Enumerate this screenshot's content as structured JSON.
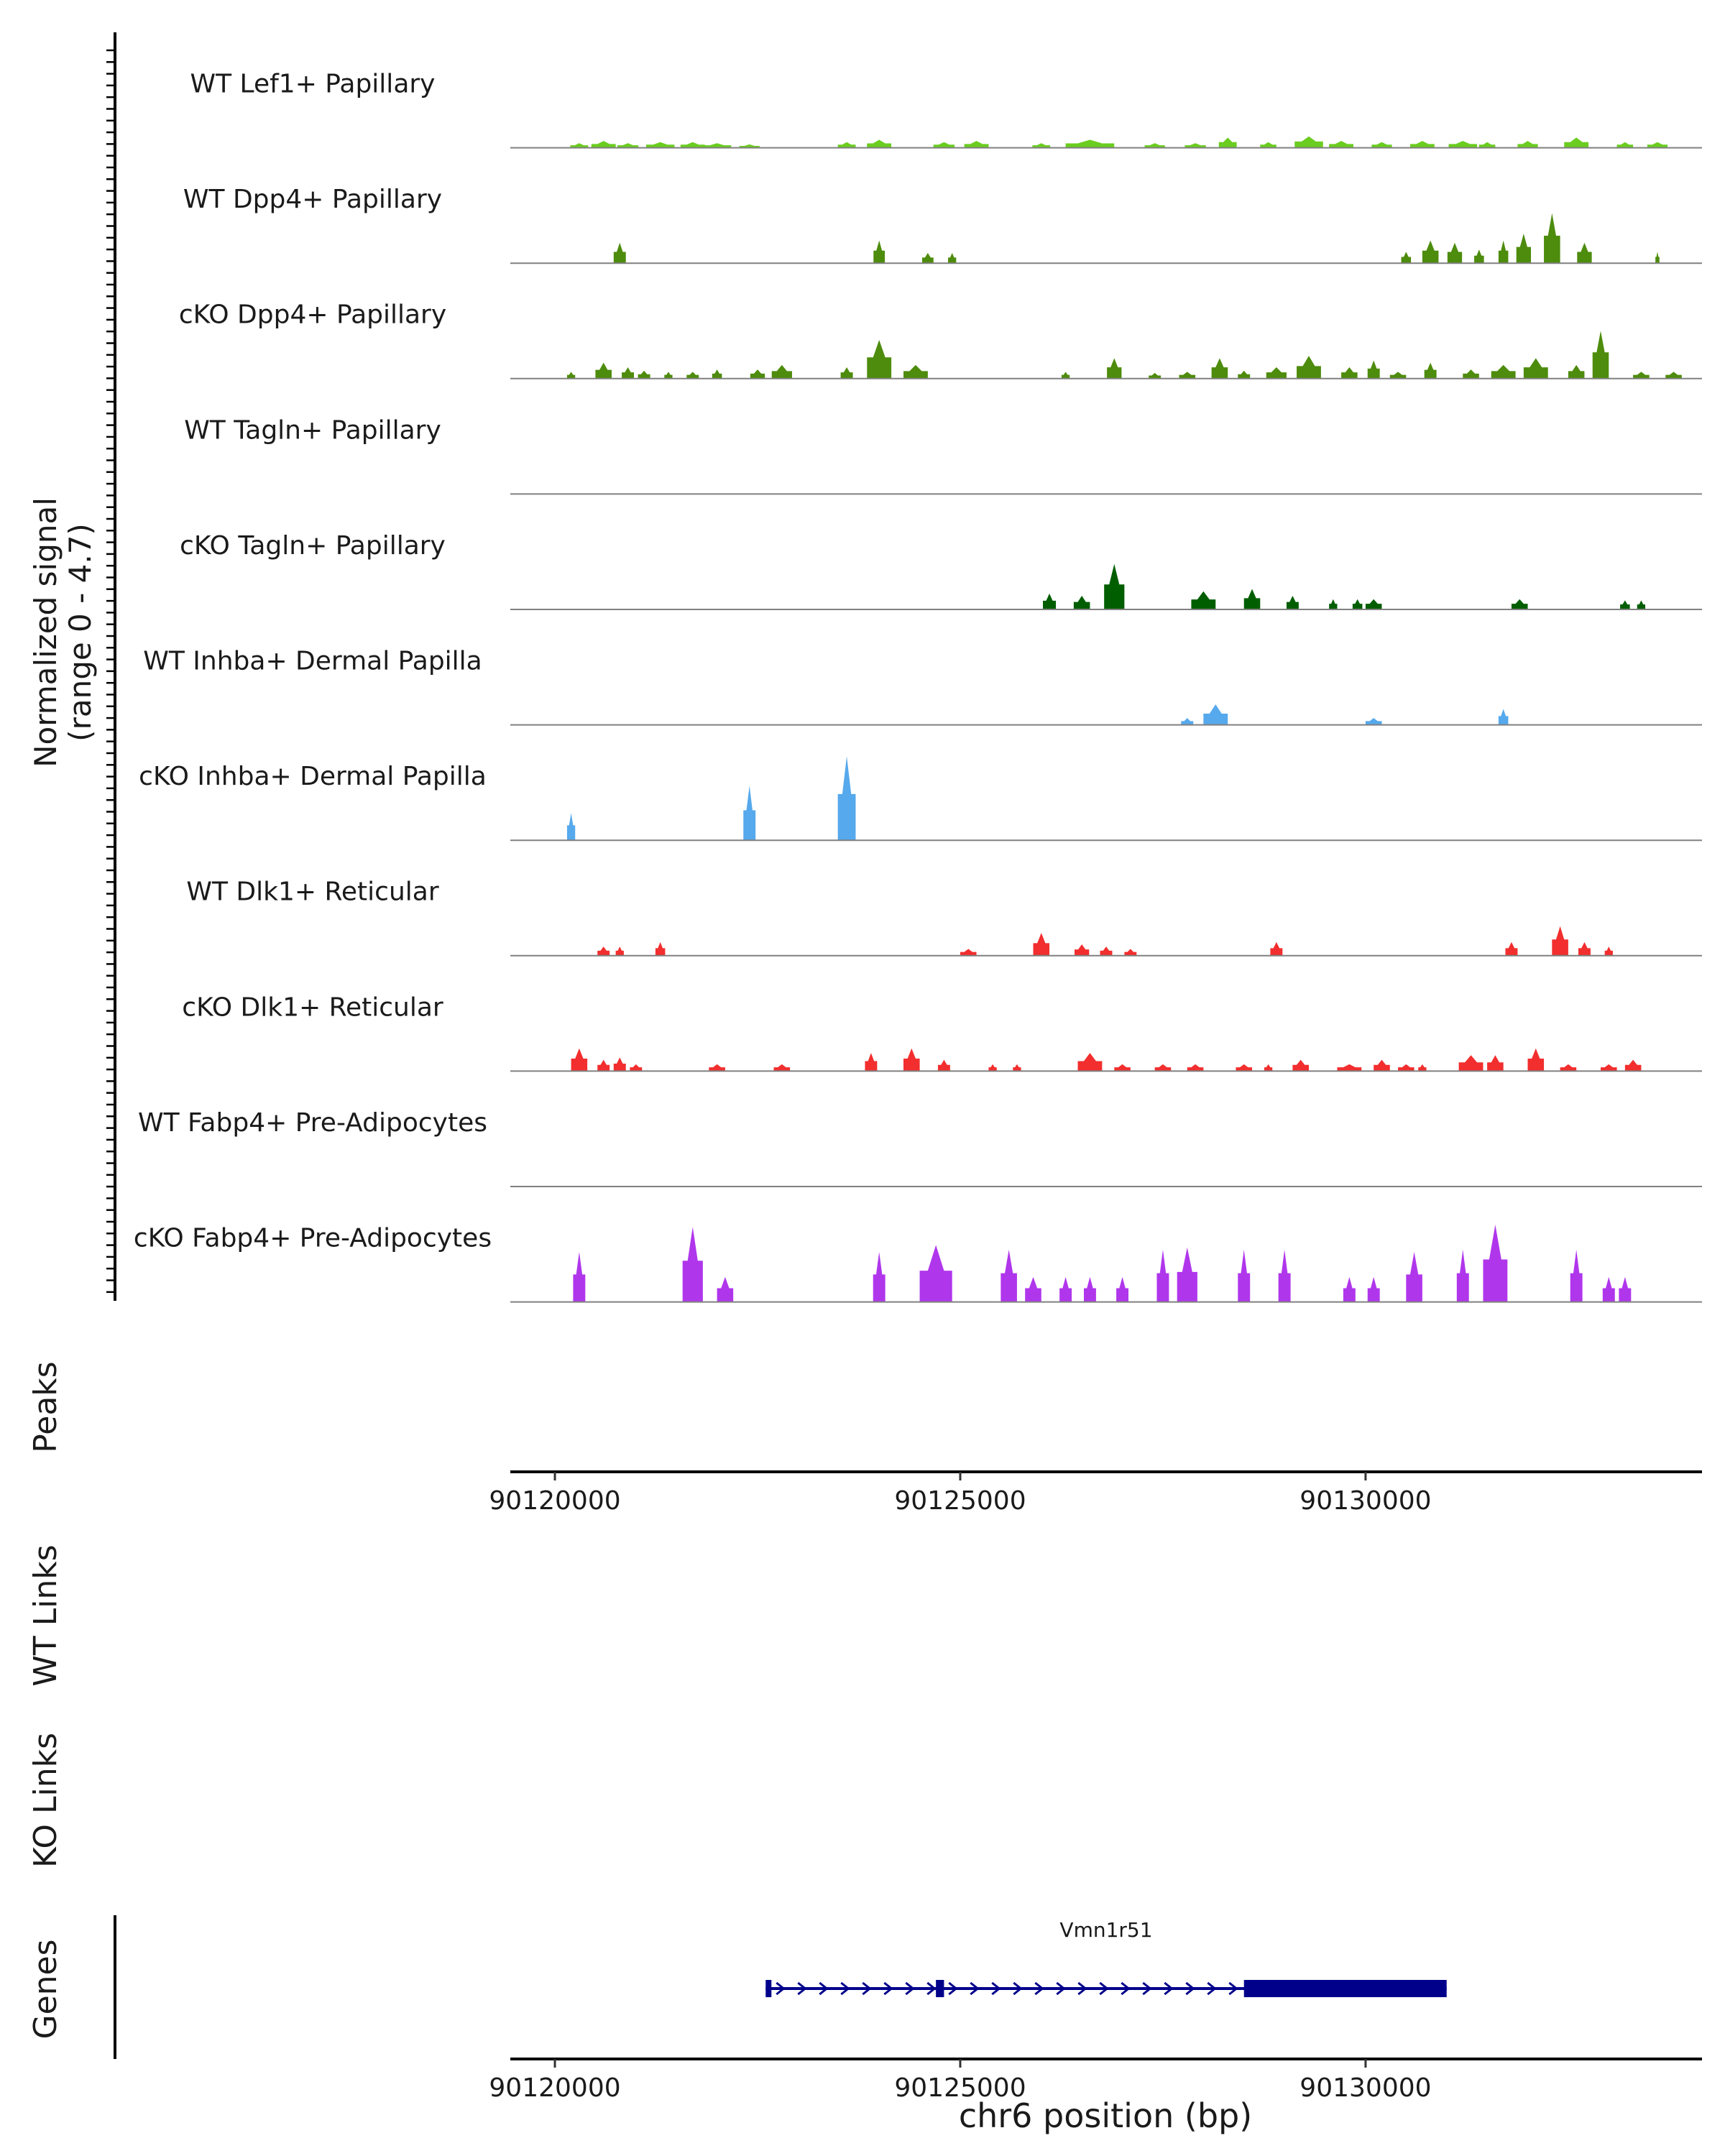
{
  "chart_data": {
    "type": "area",
    "description_axis": "chr6 position (bp)",
    "y_panel_label": "Normalized signal\n(range 0 - 4.7)",
    "y_range": [
      0,
      4.7
    ],
    "x_range": [
      90119450,
      90134150
    ],
    "x_ticks": [
      90120000,
      90125000,
      90130000
    ],
    "x_tick_labels": [
      "90120000",
      "90125000",
      "90130000"
    ],
    "xlabel": "chr6 position (bp)",
    "tracks": [
      {
        "name": "WT Lef1+ Papillary",
        "color": "#6acd1f",
        "peaks": [
          [
            90120300,
            220,
            0.2
          ],
          [
            90120600,
            300,
            0.3
          ],
          [
            90120900,
            260,
            0.2
          ],
          [
            90121300,
            350,
            0.25
          ],
          [
            90121700,
            300,
            0.25
          ],
          [
            90122000,
            350,
            0.2
          ],
          [
            90122400,
            250,
            0.15
          ],
          [
            90123600,
            220,
            0.25
          ],
          [
            90124000,
            300,
            0.35
          ],
          [
            90124800,
            260,
            0.25
          ],
          [
            90125200,
            300,
            0.3
          ],
          [
            90126000,
            220,
            0.2
          ],
          [
            90126600,
            600,
            0.35
          ],
          [
            90127400,
            250,
            0.2
          ],
          [
            90127900,
            260,
            0.2
          ],
          [
            90128300,
            220,
            0.45
          ],
          [
            90128800,
            200,
            0.25
          ],
          [
            90129300,
            350,
            0.5
          ],
          [
            90129700,
            300,
            0.3
          ],
          [
            90130200,
            250,
            0.25
          ],
          [
            90130700,
            300,
            0.3
          ],
          [
            90131200,
            350,
            0.3
          ],
          [
            90131500,
            200,
            0.25
          ],
          [
            90132000,
            250,
            0.3
          ],
          [
            90132600,
            300,
            0.45
          ],
          [
            90133200,
            200,
            0.25
          ],
          [
            90133600,
            250,
            0.25
          ]
        ]
      },
      {
        "name": "WT Dpp4+ Papillary",
        "color": "#4d8c0c",
        "peaks": [
          [
            90120800,
            150,
            0.9
          ],
          [
            90124000,
            140,
            1.0
          ],
          [
            90124600,
            140,
            0.45
          ],
          [
            90124900,
            100,
            0.45
          ],
          [
            90130500,
            120,
            0.5
          ],
          [
            90130800,
            200,
            1.0
          ],
          [
            90131100,
            180,
            0.9
          ],
          [
            90131400,
            120,
            0.6
          ],
          [
            90131700,
            120,
            1.0
          ],
          [
            90131950,
            180,
            1.3
          ],
          [
            90132300,
            200,
            2.2
          ],
          [
            90132700,
            180,
            0.9
          ],
          [
            90133600,
            50,
            0.5
          ]
        ]
      },
      {
        "name": "cKO Dpp4+ Papillary",
        "color": "#4d8c0c",
        "peaks": [
          [
            90120200,
            100,
            0.3
          ],
          [
            90120600,
            200,
            0.7
          ],
          [
            90120900,
            150,
            0.5
          ],
          [
            90121100,
            150,
            0.35
          ],
          [
            90121400,
            100,
            0.3
          ],
          [
            90121700,
            150,
            0.3
          ],
          [
            90122000,
            120,
            0.4
          ],
          [
            90122500,
            180,
            0.4
          ],
          [
            90122800,
            250,
            0.6
          ],
          [
            90123600,
            150,
            0.5
          ],
          [
            90124000,
            300,
            1.7
          ],
          [
            90124450,
            300,
            0.6
          ],
          [
            90126300,
            100,
            0.3
          ],
          [
            90126900,
            180,
            0.9
          ],
          [
            90127400,
            150,
            0.25
          ],
          [
            90127800,
            200,
            0.3
          ],
          [
            90128200,
            200,
            0.9
          ],
          [
            90128500,
            150,
            0.35
          ],
          [
            90128900,
            250,
            0.5
          ],
          [
            90129300,
            300,
            1.0
          ],
          [
            90129800,
            200,
            0.5
          ],
          [
            90130100,
            150,
            0.8
          ],
          [
            90130400,
            200,
            0.3
          ],
          [
            90130800,
            150,
            0.7
          ],
          [
            90131300,
            200,
            0.4
          ],
          [
            90131700,
            300,
            0.6
          ],
          [
            90132100,
            300,
            0.9
          ],
          [
            90132600,
            200,
            0.6
          ],
          [
            90132900,
            200,
            2.1
          ],
          [
            90133400,
            200,
            0.3
          ],
          [
            90133800,
            200,
            0.3
          ]
        ]
      },
      {
        "name": "WT Tagln+ Papillary",
        "color": "#005e00",
        "peaks": []
      },
      {
        "name": "cKO Tagln+ Papillary",
        "color": "#005e00",
        "peaks": [
          [
            90126100,
            160,
            0.7
          ],
          [
            90126500,
            200,
            0.6
          ],
          [
            90126900,
            250,
            2.0
          ],
          [
            90128000,
            300,
            0.8
          ],
          [
            90128600,
            200,
            0.9
          ],
          [
            90129100,
            150,
            0.6
          ],
          [
            90129600,
            100,
            0.45
          ],
          [
            90129900,
            120,
            0.45
          ],
          [
            90130100,
            200,
            0.45
          ],
          [
            90131900,
            200,
            0.45
          ],
          [
            90133200,
            120,
            0.4
          ],
          [
            90133400,
            100,
            0.4
          ]
        ]
      },
      {
        "name": "WT Inhba+ Dermal Papilla",
        "color": "#56a9ec",
        "peaks": [
          [
            90127800,
            150,
            0.3
          ],
          [
            90128150,
            300,
            0.9
          ],
          [
            90130100,
            200,
            0.3
          ],
          [
            90131700,
            120,
            0.7
          ]
        ]
      },
      {
        "name": "cKO Inhba+ Dermal Papilla",
        "color": "#56a9ec",
        "peaks": [
          [
            90120200,
            100,
            1.2
          ],
          [
            90122400,
            150,
            2.4
          ],
          [
            90123600,
            220,
            3.7
          ]
        ]
      },
      {
        "name": "WT Dlk1+ Reticular",
        "color": "#f22e2e",
        "peaks": [
          [
            90120600,
            150,
            0.4
          ],
          [
            90120800,
            100,
            0.4
          ],
          [
            90121300,
            120,
            0.6
          ],
          [
            90125100,
            200,
            0.3
          ],
          [
            90126000,
            200,
            1.0
          ],
          [
            90126500,
            180,
            0.5
          ],
          [
            90126800,
            150,
            0.4
          ],
          [
            90127100,
            150,
            0.3
          ],
          [
            90128900,
            150,
            0.6
          ],
          [
            90131800,
            150,
            0.6
          ],
          [
            90132400,
            200,
            1.3
          ],
          [
            90132700,
            150,
            0.6
          ],
          [
            90133000,
            100,
            0.4
          ]
        ]
      },
      {
        "name": "cKO Dlk1+ Reticular",
        "color": "#f22e2e",
        "peaks": [
          [
            90120300,
            200,
            1.0
          ],
          [
            90120600,
            150,
            0.5
          ],
          [
            90120800,
            150,
            0.6
          ],
          [
            90121000,
            150,
            0.3
          ],
          [
            90122000,
            200,
            0.3
          ],
          [
            90122800,
            200,
            0.3
          ],
          [
            90123900,
            150,
            0.8
          ],
          [
            90124400,
            200,
            1.0
          ],
          [
            90124800,
            150,
            0.5
          ],
          [
            90125400,
            100,
            0.3
          ],
          [
            90125700,
            100,
            0.3
          ],
          [
            90126600,
            300,
            0.8
          ],
          [
            90127000,
            200,
            0.3
          ],
          [
            90127500,
            200,
            0.3
          ],
          [
            90127900,
            200,
            0.3
          ],
          [
            90128500,
            200,
            0.3
          ],
          [
            90128800,
            100,
            0.3
          ],
          [
            90129200,
            200,
            0.5
          ],
          [
            90129800,
            300,
            0.3
          ],
          [
            90130200,
            200,
            0.5
          ],
          [
            90130500,
            200,
            0.3
          ],
          [
            90130700,
            100,
            0.3
          ],
          [
            90131300,
            300,
            0.7
          ],
          [
            90131600,
            200,
            0.7
          ],
          [
            90132100,
            200,
            1.0
          ],
          [
            90132500,
            200,
            0.3
          ],
          [
            90133000,
            200,
            0.3
          ],
          [
            90133300,
            200,
            0.5
          ]
        ]
      },
      {
        "name": "WT Fabp4+ Pre-Adipocytes",
        "color": "#b036ec",
        "peaks": []
      },
      {
        "name": "cKO Fabp4+ Pre-Adipocytes",
        "color": "#b036ec",
        "peaks": [
          [
            90120300,
            150,
            2.2
          ],
          [
            90121700,
            250,
            3.3
          ],
          [
            90122100,
            200,
            1.1
          ],
          [
            90124000,
            150,
            2.2
          ],
          [
            90124700,
            400,
            2.5
          ],
          [
            90125600,
            200,
            2.3
          ],
          [
            90125900,
            200,
            1.1
          ],
          [
            90126300,
            150,
            1.1
          ],
          [
            90126600,
            150,
            1.1
          ],
          [
            90127000,
            150,
            1.1
          ],
          [
            90127500,
            150,
            2.3
          ],
          [
            90127800,
            250,
            2.4
          ],
          [
            90128500,
            150,
            2.3
          ],
          [
            90129000,
            150,
            2.3
          ],
          [
            90129800,
            150,
            1.1
          ],
          [
            90130100,
            150,
            1.1
          ],
          [
            90130600,
            200,
            2.2
          ],
          [
            90131200,
            150,
            2.3
          ],
          [
            90131600,
            300,
            3.4
          ],
          [
            90132600,
            150,
            2.3
          ],
          [
            90133000,
            150,
            1.1
          ],
          [
            90133200,
            150,
            1.1
          ]
        ]
      }
    ],
    "peaks_track": {
      "label": "Peaks",
      "items": []
    },
    "links_tracks": [
      {
        "label": "WT Links",
        "items": []
      },
      {
        "label": "KO Links",
        "items": []
      }
    ],
    "genes": {
      "label": "Genes",
      "items": [
        {
          "name": "Vmn1r51",
          "start": 90122600,
          "end": 90131000,
          "strand": "+",
          "exons": [
            [
              90122600,
              90122650
            ],
            [
              90124700,
              90124800
            ],
            [
              90128500,
              90131000
            ]
          ]
        }
      ]
    }
  }
}
